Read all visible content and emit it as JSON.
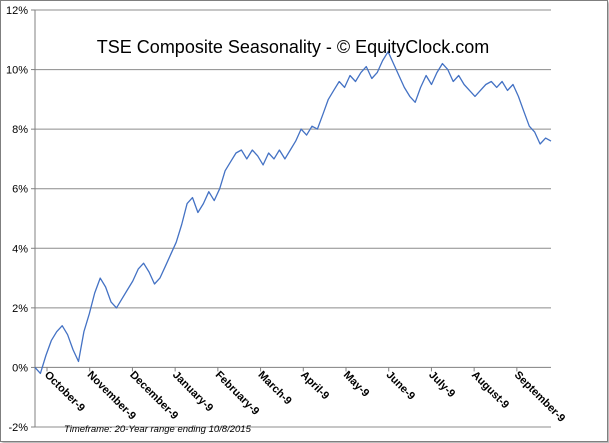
{
  "chart_data": {
    "type": "line",
    "title": "TSE Composite Seasonality - © EquityClock.com",
    "footnote": "Timeframe: 20-Year range ending 10/8/2015",
    "xlabel": "",
    "ylabel": "",
    "ylim": [
      -2,
      12
    ],
    "y_ticks": [
      "-2%",
      "0%",
      "2%",
      "4%",
      "6%",
      "8%",
      "10%",
      "12%"
    ],
    "x_ticks": [
      "October-9",
      "November-9",
      "December-9",
      "January-9",
      "February-9",
      "March-9",
      "April-9",
      "May-9",
      "June-9",
      "July-9",
      "August-9",
      "September-9"
    ],
    "grid": "horizontal",
    "colors": {
      "line": "#4472c4",
      "grid": "#8c8c8c",
      "axis": "#808080"
    },
    "series": [
      {
        "values": [
          [
            0,
            0.0
          ],
          [
            0.5,
            -0.2
          ],
          [
            1,
            0.4
          ],
          [
            1.5,
            0.9
          ],
          [
            2,
            1.2
          ],
          [
            2.5,
            1.4
          ],
          [
            3,
            1.1
          ],
          [
            3.5,
            0.6
          ],
          [
            4,
            0.2
          ],
          [
            4.5,
            1.2
          ],
          [
            5,
            1.8
          ],
          [
            5.5,
            2.5
          ],
          [
            6,
            3.0
          ],
          [
            6.5,
            2.7
          ],
          [
            7,
            2.2
          ],
          [
            7.5,
            2.0
          ],
          [
            8,
            2.3
          ],
          [
            8.5,
            2.6
          ],
          [
            9,
            2.9
          ],
          [
            9.5,
            3.3
          ],
          [
            10,
            3.5
          ],
          [
            10.5,
            3.2
          ],
          [
            11,
            2.8
          ],
          [
            11.5,
            3.0
          ],
          [
            12,
            3.4
          ],
          [
            12.5,
            3.8
          ],
          [
            13,
            4.2
          ],
          [
            13.5,
            4.8
          ],
          [
            14,
            5.5
          ],
          [
            14.5,
            5.7
          ],
          [
            15,
            5.2
          ],
          [
            15.5,
            5.5
          ],
          [
            16,
            5.9
          ],
          [
            16.5,
            5.6
          ],
          [
            17,
            6.0
          ],
          [
            17.5,
            6.6
          ],
          [
            18,
            6.9
          ],
          [
            18.5,
            7.2
          ],
          [
            19,
            7.3
          ],
          [
            19.5,
            7.0
          ],
          [
            20,
            7.3
          ],
          [
            20.5,
            7.1
          ],
          [
            21,
            6.8
          ],
          [
            21.5,
            7.2
          ],
          [
            22,
            7.0
          ],
          [
            22.5,
            7.3
          ],
          [
            23,
            7.0
          ],
          [
            23.5,
            7.3
          ],
          [
            24,
            7.6
          ],
          [
            24.5,
            8.0
          ],
          [
            25,
            7.8
          ],
          [
            25.5,
            8.1
          ],
          [
            26,
            8.0
          ],
          [
            26.5,
            8.5
          ],
          [
            27,
            9.0
          ],
          [
            27.5,
            9.3
          ],
          [
            28,
            9.6
          ],
          [
            28.5,
            9.4
          ],
          [
            29,
            9.8
          ],
          [
            29.5,
            9.6
          ],
          [
            30,
            9.9
          ],
          [
            30.5,
            10.1
          ],
          [
            31,
            9.7
          ],
          [
            31.5,
            9.9
          ],
          [
            32,
            10.3
          ],
          [
            32.5,
            10.6
          ],
          [
            33,
            10.2
          ],
          [
            33.5,
            9.8
          ],
          [
            34,
            9.4
          ],
          [
            34.5,
            9.1
          ],
          [
            35,
            8.9
          ],
          [
            35.5,
            9.4
          ],
          [
            36,
            9.8
          ],
          [
            36.5,
            9.5
          ],
          [
            37,
            9.9
          ],
          [
            37.5,
            10.2
          ],
          [
            38,
            10.0
          ],
          [
            38.5,
            9.6
          ],
          [
            39,
            9.8
          ],
          [
            39.5,
            9.5
          ],
          [
            40,
            9.3
          ],
          [
            40.5,
            9.1
          ],
          [
            41,
            9.3
          ],
          [
            41.5,
            9.5
          ],
          [
            42,
            9.6
          ],
          [
            42.5,
            9.4
          ],
          [
            43,
            9.6
          ],
          [
            43.5,
            9.3
          ],
          [
            44,
            9.5
          ],
          [
            44.5,
            9.1
          ],
          [
            45,
            8.6
          ],
          [
            45.5,
            8.1
          ],
          [
            46,
            7.9
          ],
          [
            46.5,
            7.5
          ],
          [
            47,
            7.7
          ],
          [
            47.5,
            7.6
          ]
        ]
      }
    ]
  }
}
